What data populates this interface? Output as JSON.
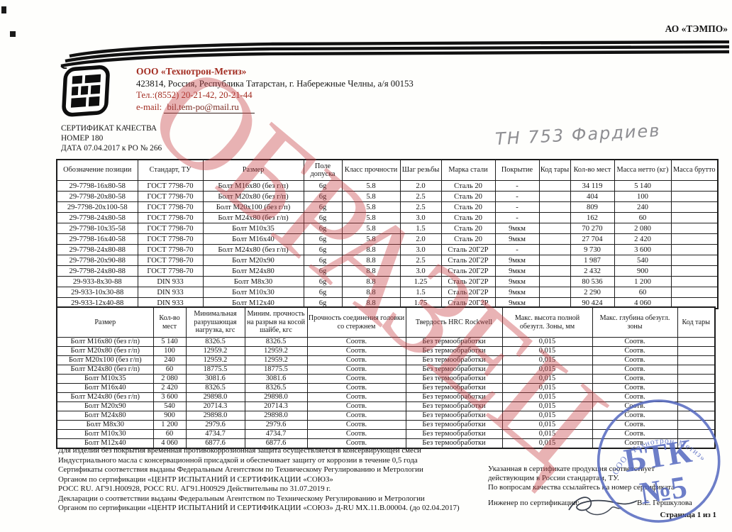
{
  "corner_company": "АО «ТЭМПО»",
  "header": {
    "company_name": "ООО «Технотрон-Метиз»",
    "address": "423814, Россия, Республика Татарстан,  г. Набережные Челны, а/я 00153",
    "phone": "Тел.:(8552) 20-21-42, 20-21-44",
    "email_label": "e-mail:",
    "email": "bil.tem-po@mail.ru",
    "cert_title": "СЕРТИФИКАТ КАЧЕСТВА",
    "cert_number": "НОМЕР 180",
    "cert_date": "ДАТА 07.04.2017  к РО № 266",
    "handwritten_note": "ТН 753   Фардиев"
  },
  "table1": {
    "headers": [
      "Обозначение позиции",
      "Стандарт, ТУ",
      "Размер",
      "Поле допуска",
      "Класс прочности",
      "Шаг резьбы",
      "Марка стали",
      "Покрытие",
      "Код тары",
      "Кол-во мест",
      "Масса нетто (кг)",
      "Масса брутто"
    ],
    "rows": [
      [
        "29-7798-16x80-58",
        "ГОСТ 7798-70",
        "Болт М16х80 (без г/п)",
        "6g",
        "5.8",
        "2.0",
        "Сталь 20",
        "-",
        "",
        "34 119",
        "5 140",
        ""
      ],
      [
        "29-7798-20x80-58",
        "ГОСТ 7798-70",
        "Болт М20х80 (без г/п)",
        "6g",
        "5.8",
        "2.5",
        "Сталь 20",
        "-",
        "",
        "404",
        "100",
        ""
      ],
      [
        "29-7798-20x100-58",
        "ГОСТ 7798-70",
        "Болт М20х100 (без г/п)",
        "6g",
        "5.8",
        "2.5",
        "Сталь 20",
        "-",
        "",
        "809",
        "240",
        ""
      ],
      [
        "29-7798-24x80-58",
        "ГОСТ 7798-70",
        "Болт М24х80 (без г/п)",
        "6g",
        "5.8",
        "3.0",
        "Сталь 20",
        "-",
        "",
        "162",
        "60",
        ""
      ],
      [
        "29-7798-10x35-58",
        "ГОСТ 7798-70",
        "Болт М10х35",
        "6g",
        "5.8",
        "1.5",
        "Сталь 20",
        "9мкм",
        "",
        "70 270",
        "2 080",
        ""
      ],
      [
        "29-7798-16x40-58",
        "ГОСТ 7798-70",
        "Болт М16х40",
        "6g",
        "5.8",
        "2.0",
        "Сталь 20",
        "9мкм",
        "",
        "27 704",
        "2 420",
        ""
      ],
      [
        "29-7798-24x80-88",
        "ГОСТ 7798-70",
        "Болт М24х80 (без г/п)",
        "6g",
        "8.8",
        "3.0",
        "Сталь 20Г2Р",
        "-",
        "",
        "9 730",
        "3 600",
        ""
      ],
      [
        "29-7798-20x90-88",
        "ГОСТ 7798-70",
        "Болт М20х90",
        "6g",
        "8.8",
        "2.5",
        "Сталь 20Г2Р",
        "9мкм",
        "",
        "1 987",
        "540",
        ""
      ],
      [
        "29-7798-24x80-88",
        "ГОСТ 7798-70",
        "Болт М24х80",
        "6g",
        "8.8",
        "3.0",
        "Сталь 20Г2Р",
        "9мкм",
        "",
        "2 432",
        "900",
        ""
      ],
      [
        "29-933-8x30-88",
        "DIN 933",
        "Болт М8х30",
        "6g",
        "8.8",
        "1.25",
        "Сталь 20Г2Р",
        "9мкм",
        "",
        "80 536",
        "1 200",
        ""
      ],
      [
        "29-933-10x30-88",
        "DIN 933",
        "Болт М10х30",
        "6g",
        "8.8",
        "1.5",
        "Сталь 20Г2Р",
        "9мкм",
        "",
        "2 290",
        "60",
        ""
      ],
      [
        "29-933-12x40-88",
        "DIN 933",
        "Болт М12х40",
        "6g",
        "8.8",
        "1.75",
        "Сталь 20Г2Р",
        "9мкм",
        "",
        "90 424",
        "4 060",
        ""
      ]
    ]
  },
  "table2": {
    "headers": [
      "Размер",
      "Кол-во мест",
      "Минимальная разрушающая нагрузка, кгс",
      "Миним. прочность на разрыв на косой шайбе, кгс",
      "Прочность соединения головки со стержнем",
      "Твердость HRC Rockwell",
      "Макс. высота полной обезугл. Зоны, мм",
      "Макс. глубина обезугл. зоны",
      "Код тары"
    ],
    "rows": [
      [
        "Болт М16х80 (без г/п)",
        "5 140",
        "8326.5",
        "8326.5",
        "Соотв.",
        "Без термообработки",
        "0,015",
        "Соотв.",
        ""
      ],
      [
        "Болт М20х80 (без г/п)",
        "100",
        "12959.2",
        "12959.2",
        "Соотв.",
        "Без термообработки",
        "0,015",
        "Соотв.",
        ""
      ],
      [
        "Болт М20х100 (без г/п)",
        "240",
        "12959.2",
        "12959.2",
        "Соотв.",
        "Без термообработки",
        "0,015",
        "Соотв.",
        ""
      ],
      [
        "Болт М24х80 (без г/п)",
        "60",
        "18775.5",
        "18775.5",
        "Соотв.",
        "Без термообработки",
        "0,015",
        "Соотв.",
        ""
      ],
      [
        "Болт М10х35",
        "2 080",
        "3081.6",
        "3081.6",
        "Соотв.",
        "Без термообработки",
        "0,015",
        "Соотв.",
        ""
      ],
      [
        "Болт М16х40",
        "2 420",
        "8326.5",
        "8326.5",
        "Соотв.",
        "Без термообработки",
        "0,015",
        "Соотв.",
        ""
      ],
      [
        "Болт М24х80 (без г/п)",
        "3 600",
        "29898.0",
        "29898.0",
        "Соотв.",
        "Без термообработки",
        "0,015",
        "Соотв.",
        ""
      ],
      [
        "Болт М20х90",
        "540",
        "20714.3",
        "20714.3",
        "Соотв.",
        "Без термообработки",
        "0,015",
        "Соотв.",
        ""
      ],
      [
        "Болт М24х80",
        "900",
        "29898.0",
        "29898.0",
        "Соотв.",
        "Без термообработки",
        "0,015",
        "Соотв.",
        ""
      ],
      [
        "Болт М8х30",
        "1 200",
        "2979.6",
        "2979.6",
        "Соотв.",
        "Без термообработки",
        "0,015",
        "Соотв.",
        ""
      ],
      [
        "Болт М10х30",
        "60",
        "4734.7",
        "4734.7",
        "Соотв.",
        "Без термообработки",
        "0,015",
        "Соотв.",
        ""
      ],
      [
        "Болт М12х40",
        "4 060",
        "6877.6",
        "6877.6",
        "Соотв.",
        "Без термообработки",
        "0,015",
        "Соотв.",
        ""
      ]
    ]
  },
  "footer": {
    "left_lines": [
      "Для изделий без покрытия временная противокоррозионная защита осуществляется в консервирующей смеси",
      "Индустриального масла с консервационной присадкой и обеспечивает защиту от коррозии в течение 0,5 года",
      "Сертификаты соответствия выданы Федеральным Агентством по Техническому Регулированию и Метрологии",
      "Органом по сертификации «ЦЕНТР ИСПЫТАНИЙ И СЕРТИФИКАЦИИ «СОЮЗ»",
      "РОСС RU. АГ91.Н00928,  РОСС RU. АГ91.Н00929 Действительны по 31.07.2019 г.",
      "Декларации о соответствии выданы Федеральным Агентством по Техническому Регулированию и Метрологии",
      "Органом по сертификации «ЦЕНТР ИСПЫТАНИЙ И СЕРТИФИКАЦИИ «СОЮЗ» Д-RU МХ.11.В.00004. (до 02.04.2017)"
    ],
    "right_lines": [
      "Указанная в сертификате продукция соответствует",
      "действующим в России стандартам, ТУ.",
      "По вопросам качества ссылайтесь на номер сертификата"
    ],
    "engineer_label": "Инженер по сертификации:",
    "engineer_name": "В.Е. Гершкулова",
    "page_label": "Страница 1 из 1"
  },
  "watermark": {
    "text": "ОБРАЗЕЦ",
    "color": "#c74046"
  },
  "stamp": {
    "curved_text": "ООО «Технотрон-Метиз»",
    "line1": "БТК",
    "line2": "№5",
    "color": "#5468c0"
  }
}
